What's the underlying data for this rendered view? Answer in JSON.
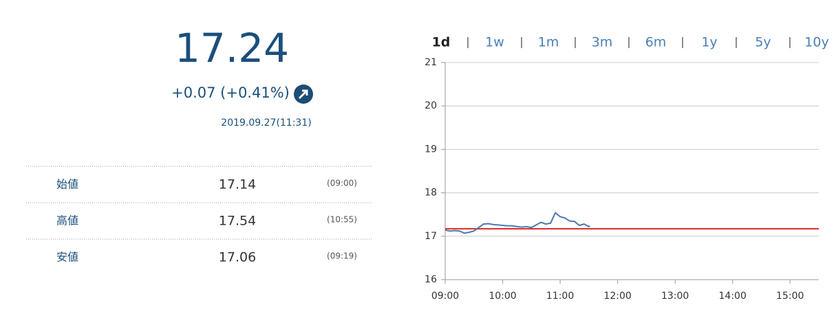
{
  "quote": {
    "price": "17.24",
    "change": "+0.07 (+0.41%)",
    "timestamp": "2019.09.27(11:31)",
    "rows": [
      {
        "label": "始値",
        "value": "17.14",
        "time": "(09:00)"
      },
      {
        "label": "高値",
        "value": "17.54",
        "time": "(10:55)"
      },
      {
        "label": "安値",
        "value": "17.06",
        "time": "(09:19)"
      }
    ]
  },
  "tabs": {
    "active": "1d",
    "items": [
      "1w",
      "1m",
      "3m",
      "6m",
      "1y",
      "5y",
      "10y"
    ]
  },
  "chart_data": {
    "type": "line",
    "x": [
      "09:00",
      "09:05",
      "09:10",
      "09:15",
      "09:20",
      "09:25",
      "09:30",
      "09:35",
      "09:40",
      "09:45",
      "09:50",
      "09:55",
      "10:00",
      "10:05",
      "10:10",
      "10:15",
      "10:20",
      "10:25",
      "10:30",
      "10:35",
      "10:40",
      "10:45",
      "10:50",
      "10:55",
      "11:00",
      "11:05",
      "11:10",
      "11:15",
      "11:20",
      "11:25",
      "11:30",
      "11:31"
    ],
    "series": [
      {
        "color": "#4a78b0",
        "values": [
          17.14,
          17.12,
          17.13,
          17.12,
          17.07,
          17.09,
          17.12,
          17.2,
          17.28,
          17.29,
          17.27,
          17.26,
          17.25,
          17.24,
          17.24,
          17.22,
          17.21,
          17.22,
          17.2,
          17.26,
          17.32,
          17.28,
          17.3,
          17.54,
          17.45,
          17.42,
          17.35,
          17.34,
          17.25,
          17.28,
          17.22,
          17.24
        ]
      }
    ],
    "reference_line": {
      "value": 17.17,
      "color": "#d9302c"
    },
    "xlim": [
      "09:00",
      "15:30"
    ],
    "xticks": [
      "09:00",
      "10:00",
      "11:00",
      "12:00",
      "13:00",
      "14:00",
      "15:00"
    ],
    "ylim": [
      16,
      21
    ],
    "yticks": [
      16,
      17,
      18,
      19,
      20,
      21
    ],
    "grid": true
  }
}
